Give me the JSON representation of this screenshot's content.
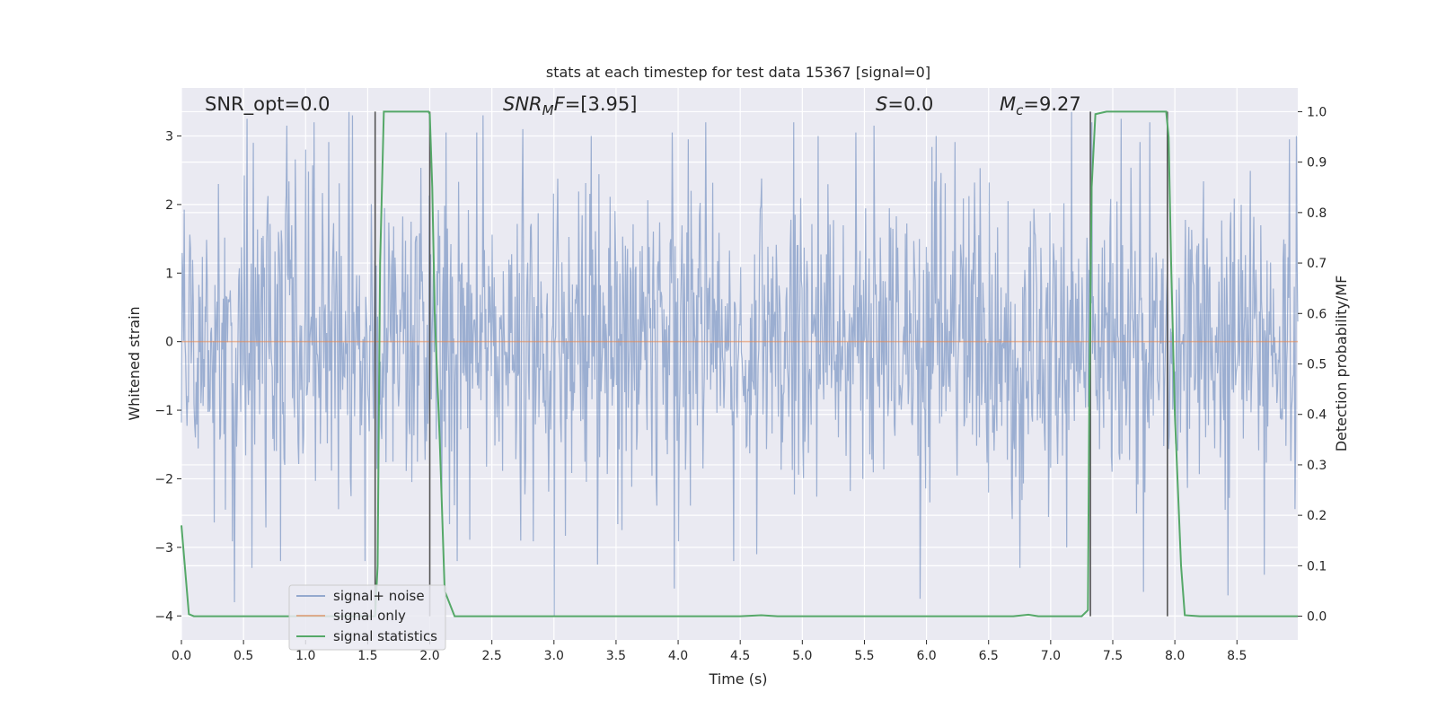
{
  "chart_data": {
    "type": "line",
    "title": "stats at each timestep for test data 15367 [signal=0]",
    "xlabel": "Time (s)",
    "ylabel": "Whitened strain",
    "y2label": "Detection probability/MF",
    "xlim": [
      0,
      8.99
    ],
    "ylim": [
      -4.35,
      3.7
    ],
    "y2lim": [
      -0.047,
      1.047
    ],
    "xticks": [
      0.0,
      0.5,
      1.0,
      1.5,
      2.0,
      2.5,
      3.0,
      3.5,
      4.0,
      4.5,
      5.0,
      5.5,
      6.0,
      6.5,
      7.0,
      7.5,
      8.0,
      8.5
    ],
    "xtick_labels": [
      "0.0",
      "0.5",
      "1.0",
      "1.5",
      "2.0",
      "2.5",
      "3.0",
      "3.5",
      "4.0",
      "4.5",
      "5.0",
      "5.5",
      "6.0",
      "6.5",
      "7.0",
      "7.5",
      "8.0",
      "8.5"
    ],
    "yticks": [
      3,
      2,
      1,
      0,
      -1,
      -2,
      -3,
      -4
    ],
    "ytick_labels": [
      "3",
      "2",
      "1",
      "0",
      "−1",
      "−2",
      "−3",
      "−4"
    ],
    "y2ticks": [
      1.0,
      0.9,
      0.8,
      0.7,
      0.6,
      0.5,
      0.4,
      0.3,
      0.2,
      0.1,
      0.0
    ],
    "y2tick_labels": [
      "1.0",
      "0.9",
      "0.8",
      "0.7",
      "0.6",
      "0.5",
      "0.4",
      "0.3",
      "0.2",
      "0.1",
      "0.0"
    ],
    "grid": true,
    "legend_position": "lower-left",
    "annotations": {
      "snr_opt": "SNR_opt=0.0",
      "snr_mf_base": "SNR",
      "snr_mf_sub": "M",
      "snr_mf_rest": "F=[3.95]",
      "s_base": "S",
      "s_rest": "=0.0",
      "mc_base": "M",
      "mc_sub": "c",
      "mc_rest": "=9.27"
    },
    "series": [
      {
        "name": "signal+ noise",
        "color": "#4c72b0",
        "alpha": 0.5,
        "duration": 8.99,
        "samples": 1600,
        "envelope_upper_typical": 2.2,
        "envelope_lower_typical": -2.2,
        "peaks": [
          {
            "x": 0.3,
            "y": 2.3
          },
          {
            "x": 0.53,
            "y": 3.25
          },
          {
            "x": 0.58,
            "y": 2.9
          },
          {
            "x": 0.85,
            "y": 3.15
          },
          {
            "x": 1.07,
            "y": 3.2
          },
          {
            "x": 1.35,
            "y": 3.35
          },
          {
            "x": 1.38,
            "y": 3.3
          },
          {
            "x": 1.48,
            "y": 3.1
          },
          {
            "x": 2.13,
            "y": 3.05
          },
          {
            "x": 2.38,
            "y": 3.05
          },
          {
            "x": 2.43,
            "y": 3.3
          },
          {
            "x": 2.75,
            "y": 3.1
          },
          {
            "x": 3.3,
            "y": 3.0
          },
          {
            "x": 3.95,
            "y": 3.05
          },
          {
            "x": 4.08,
            "y": 2.95
          },
          {
            "x": 4.22,
            "y": 3.2
          },
          {
            "x": 4.93,
            "y": 3.2
          },
          {
            "x": 5.13,
            "y": 3.0
          },
          {
            "x": 5.43,
            "y": 3.05
          },
          {
            "x": 5.58,
            "y": 3.15
          },
          {
            "x": 6.08,
            "y": 3.0
          },
          {
            "x": 7.17,
            "y": 3.35
          },
          {
            "x": 7.33,
            "y": 3.2
          },
          {
            "x": 7.57,
            "y": 3.25
          },
          {
            "x": 7.8,
            "y": 3.2
          },
          {
            "x": 8.92,
            "y": 2.95
          },
          {
            "x": 8.98,
            "y": 3.0
          },
          {
            "x": 0.43,
            "y": -3.8
          },
          {
            "x": 0.57,
            "y": -3.3
          },
          {
            "x": 0.8,
            "y": -3.2
          },
          {
            "x": 1.48,
            "y": -3.2
          },
          {
            "x": 2.22,
            "y": -3.2
          },
          {
            "x": 3.0,
            "y": -4.0
          },
          {
            "x": 3.35,
            "y": -3.25
          },
          {
            "x": 3.97,
            "y": -3.6
          },
          {
            "x": 4.45,
            "y": -3.2
          },
          {
            "x": 4.63,
            "y": -3.1
          },
          {
            "x": 5.95,
            "y": -3.75
          },
          {
            "x": 6.75,
            "y": -3.3
          },
          {
            "x": 7.13,
            "y": -3.0
          },
          {
            "x": 7.75,
            "y": -3.65
          },
          {
            "x": 8.43,
            "y": -3.7
          },
          {
            "x": 8.72,
            "y": -3.4
          }
        ]
      },
      {
        "name": "signal only",
        "color": "#dd8452",
        "x": [
          0,
          8.99
        ],
        "y": [
          0,
          0
        ]
      },
      {
        "name": "signal statistics",
        "color": "#55a868",
        "axis": "right",
        "x": [
          0.0,
          0.06,
          0.1,
          0.3,
          1.0,
          1.5,
          1.56,
          1.58,
          1.6,
          1.63,
          1.8,
          1.99,
          2.0,
          2.02,
          2.04,
          2.08,
          2.12,
          2.2,
          4.5,
          4.67,
          4.8,
          6.7,
          6.82,
          6.9,
          7.25,
          7.3,
          7.31,
          7.33,
          7.36,
          7.45,
          7.55,
          7.93,
          7.95,
          7.97,
          8.0,
          8.05,
          8.08,
          8.2,
          8.99
        ],
        "y": [
          0.18,
          0.004,
          0.0,
          0.0,
          0.0,
          0.0,
          0.0,
          0.1,
          0.7,
          1.0,
          1.0,
          1.0,
          0.995,
          0.85,
          0.6,
          0.35,
          0.05,
          0.0,
          0.0,
          0.002,
          0.0,
          0.0,
          0.003,
          0.0,
          0.0,
          0.012,
          0.4,
          0.85,
          0.995,
          1.0,
          1.0,
          1.0,
          0.95,
          0.7,
          0.4,
          0.1,
          0.002,
          0.0,
          0.0
        ]
      }
    ],
    "vertical_markers": [
      {
        "x": 1.56,
        "y_from": 0.0,
        "y_to": 1.0
      },
      {
        "x": 2.0,
        "y_from": 0.0,
        "y_to": 1.0
      },
      {
        "x": 7.32,
        "y_from": 0.0,
        "y_to": 1.0
      },
      {
        "x": 7.94,
        "y_from": 0.0,
        "y_to": 1.0
      }
    ]
  }
}
